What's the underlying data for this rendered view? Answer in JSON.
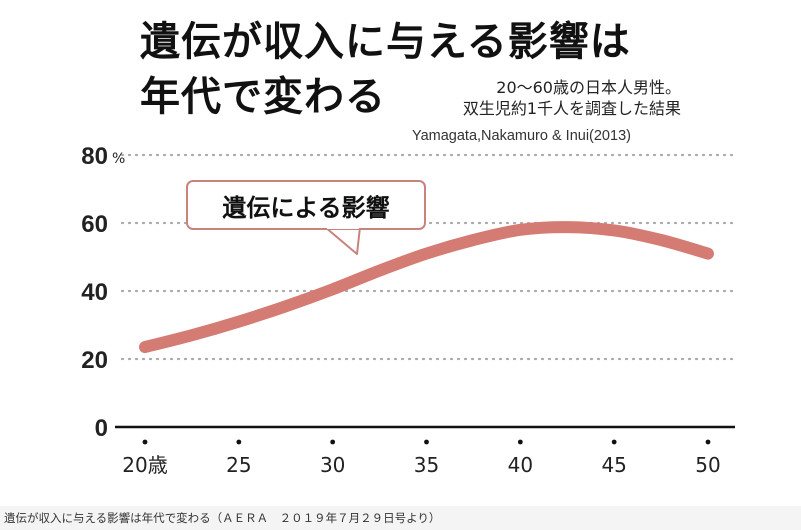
{
  "title_line1": "遺伝が収入に与える影響は",
  "title_line2": "年代で変わる",
  "subtitle_line1": "20〜60歳の日本人男性。",
  "subtitle_line2": "双生児約1千人を調査した結果",
  "source": "Yamagata,Nakamuro & Inui(2013)",
  "callout": "遺伝による影響",
  "caption": "遺伝が収入に与える影響は年代で変わる（ＡＥＲＡ　２０１９年７月２９日号より）",
  "colors": {
    "line": "#d47b73",
    "text": "#111111",
    "grid": "#aaaaaa"
  },
  "chart_data": {
    "type": "line",
    "title": "遺伝が収入に与える影響は年代で変わる",
    "xlabel": "",
    "ylabel": "",
    "x_tick_labels": [
      "20歳",
      "25",
      "30",
      "35",
      "40",
      "45",
      "50"
    ],
    "y_tick_labels": [
      "0",
      "20",
      "40",
      "60",
      "80"
    ],
    "y_unit": "%",
    "xlim": [
      20,
      50
    ],
    "ylim": [
      0,
      80
    ],
    "grid": "horizontal dotted",
    "series": [
      {
        "name": "遺伝による影響",
        "x": [
          20,
          22.5,
          25,
          27.5,
          30,
          32.5,
          35,
          37.5,
          40,
          42.5,
          45,
          47.5,
          50
        ],
        "y": [
          23.5,
          27,
          31,
          35.5,
          40.5,
          46,
          51,
          55,
          58,
          58.8,
          57.8,
          55,
          51
        ]
      }
    ]
  }
}
